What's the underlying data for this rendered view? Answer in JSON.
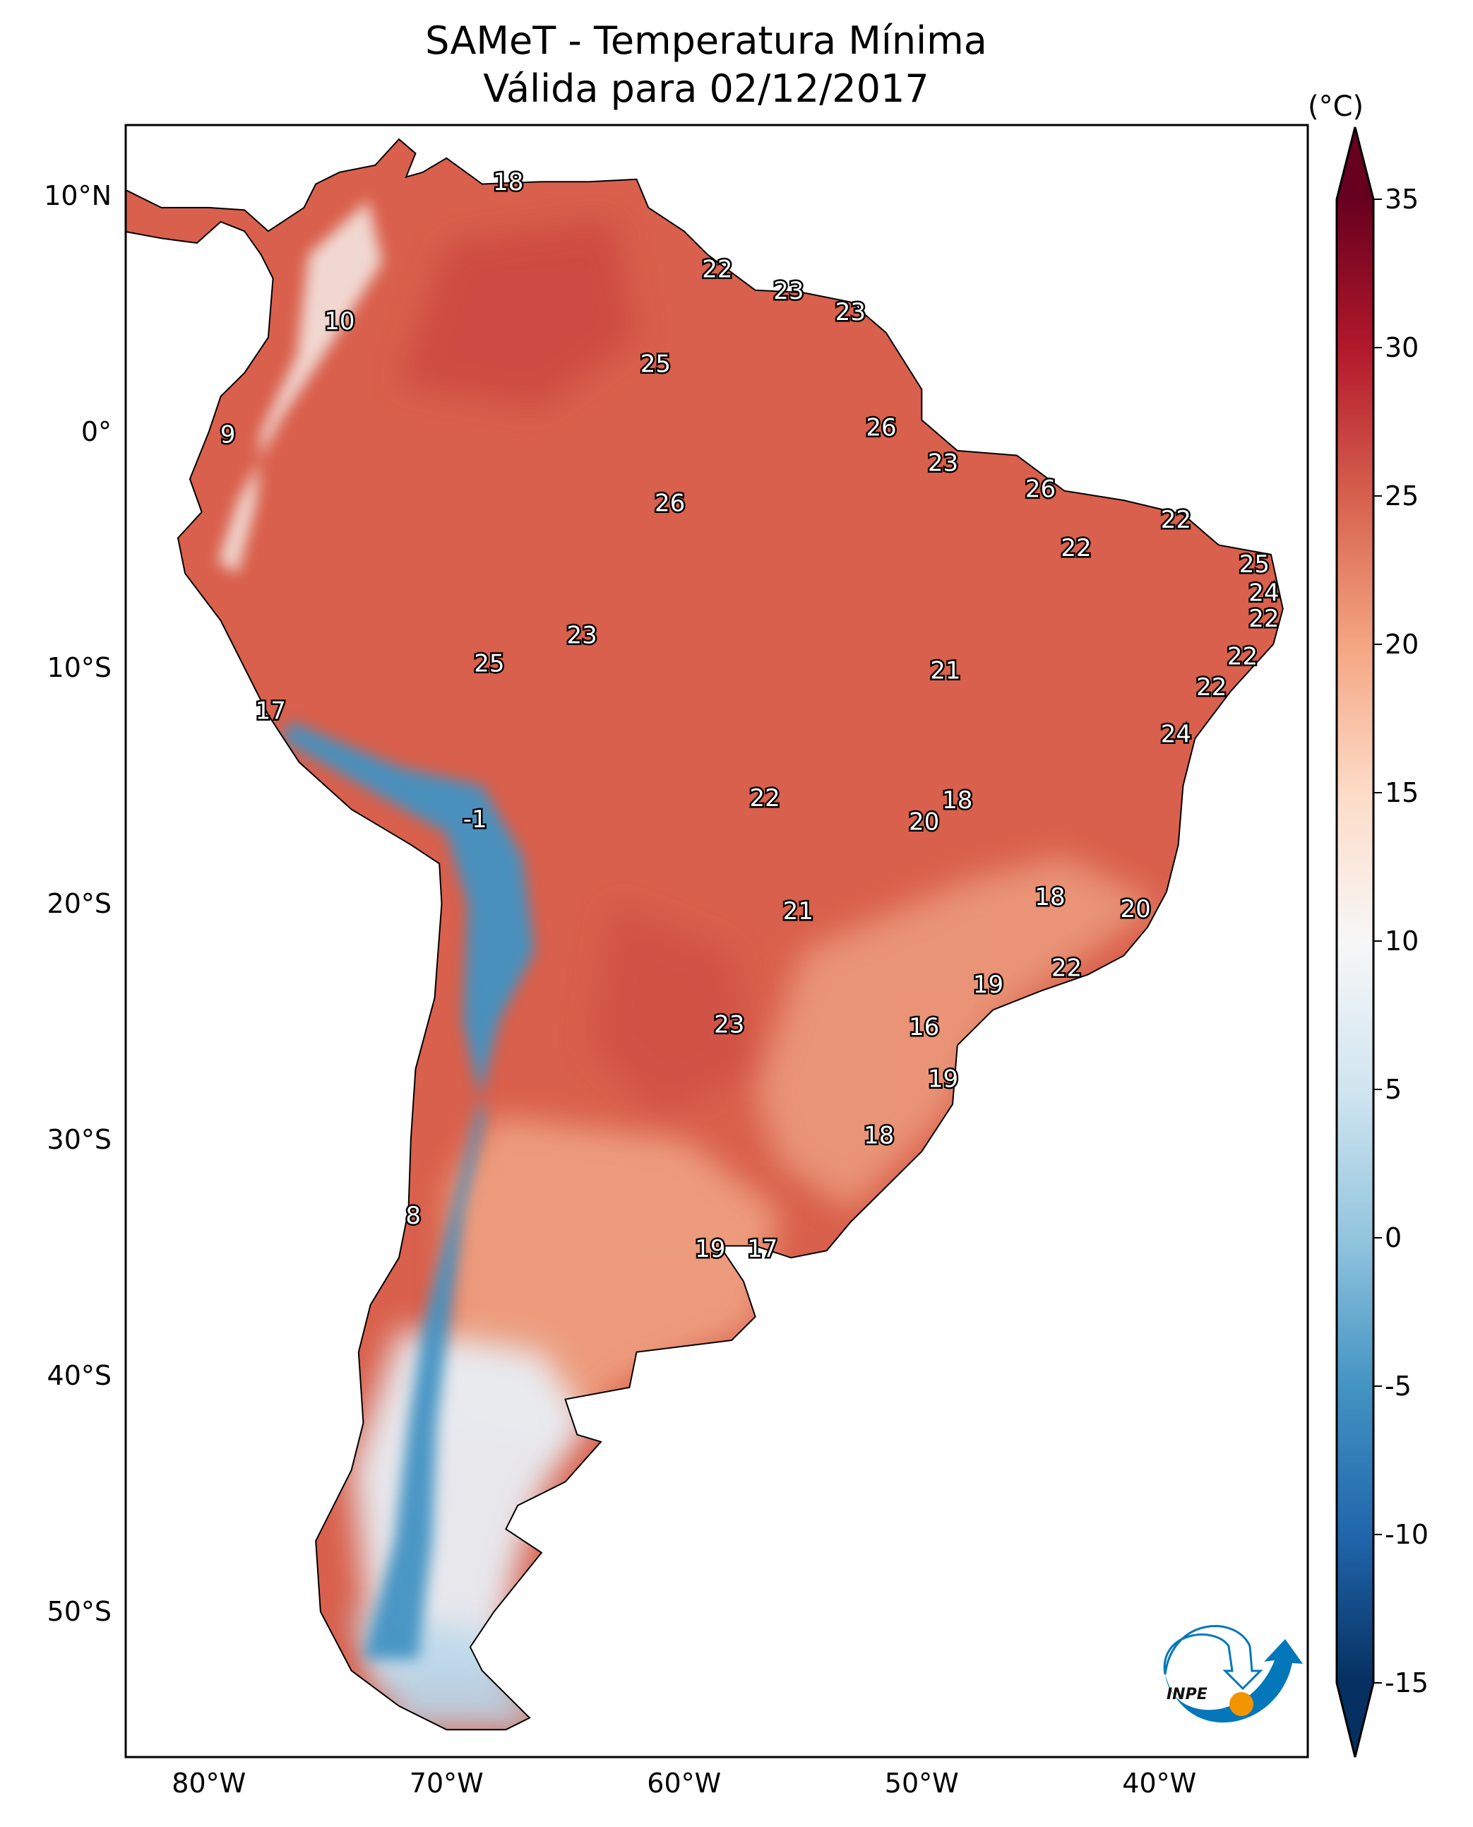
{
  "title": {
    "line1": "SAMeT - Temperatura Mínima",
    "line2": "Válida para 02/12/2017"
  },
  "colorbar": {
    "unit": "(°C)",
    "min": -15,
    "max": 35,
    "ticks": [
      "35",
      "30",
      "25",
      "20",
      "15",
      "10",
      "5",
      "0",
      "-5",
      "-10",
      "-15"
    ],
    "tick_values": [
      35,
      30,
      25,
      20,
      15,
      10,
      5,
      0,
      -5,
      -10,
      -15
    ],
    "extend": "both",
    "colors": [
      "#053061",
      "#2166ac",
      "#4393c3",
      "#92c5de",
      "#d1e5f0",
      "#f7f7f7",
      "#fddbc7",
      "#f4a582",
      "#d6604d",
      "#b2182b",
      "#67001f"
    ]
  },
  "axes": {
    "lat_ticks": [
      {
        "label": "10°N",
        "v": 10
      },
      {
        "label": "0°",
        "v": 0
      },
      {
        "label": "10°S",
        "v": -10
      },
      {
        "label": "20°S",
        "v": -20
      },
      {
        "label": "30°S",
        "v": -30
      },
      {
        "label": "40°S",
        "v": -40
      },
      {
        "label": "50°S",
        "v": -50
      }
    ],
    "lon_ticks": [
      {
        "label": "80°W",
        "v": -80
      },
      {
        "label": "70°W",
        "v": -70
      },
      {
        "label": "60°W",
        "v": -60
      },
      {
        "label": "50°W",
        "v": -50
      },
      {
        "label": "40°W",
        "v": -40
      }
    ],
    "lon_range": [
      -83.5,
      -33.75
    ],
    "lat_range": [
      -56.2,
      13
    ]
  },
  "station_labels": [
    {
      "t": "18",
      "lon": -67.4,
      "lat": 10.6
    },
    {
      "t": "22",
      "lon": -58.6,
      "lat": 6.9
    },
    {
      "t": "23",
      "lon": -55.6,
      "lat": 6.0
    },
    {
      "t": "23",
      "lon": -53.0,
      "lat": 5.1
    },
    {
      "t": "10",
      "lon": -74.5,
      "lat": 4.7
    },
    {
      "t": "25",
      "lon": -61.2,
      "lat": 2.9
    },
    {
      "t": "9",
      "lon": -79.2,
      "lat": -0.1
    },
    {
      "t": "26",
      "lon": -51.7,
      "lat": 0.2
    },
    {
      "t": "23",
      "lon": -49.1,
      "lat": -1.3
    },
    {
      "t": "26",
      "lon": -60.6,
      "lat": -3.0
    },
    {
      "t": "26",
      "lon": -45.0,
      "lat": -2.4
    },
    {
      "t": "22",
      "lon": -39.3,
      "lat": -3.7
    },
    {
      "t": "22",
      "lon": -43.5,
      "lat": -4.9
    },
    {
      "t": "25",
      "lon": -36.0,
      "lat": -5.6
    },
    {
      "t": "24",
      "lon": -35.6,
      "lat": -6.8
    },
    {
      "t": "22",
      "lon": -35.6,
      "lat": -7.9
    },
    {
      "t": "23",
      "lon": -64.3,
      "lat": -8.6
    },
    {
      "t": "25",
      "lon": -68.2,
      "lat": -9.8
    },
    {
      "t": "22",
      "lon": -36.5,
      "lat": -9.5
    },
    {
      "t": "21",
      "lon": -49.0,
      "lat": -10.1
    },
    {
      "t": "22",
      "lon": -37.8,
      "lat": -10.8
    },
    {
      "t": "17",
      "lon": -77.4,
      "lat": -11.8
    },
    {
      "t": "24",
      "lon": -39.3,
      "lat": -12.8
    },
    {
      "t": "22",
      "lon": -56.6,
      "lat": -15.5
    },
    {
      "t": "18",
      "lon": -48.5,
      "lat": -15.6
    },
    {
      "t": "-1",
      "lon": -68.8,
      "lat": -16.4
    },
    {
      "t": "20",
      "lon": -49.9,
      "lat": -16.5
    },
    {
      "t": "18",
      "lon": -44.6,
      "lat": -19.7
    },
    {
      "t": "20",
      "lon": -41.0,
      "lat": -20.2
    },
    {
      "t": "21",
      "lon": -55.2,
      "lat": -20.3
    },
    {
      "t": "22",
      "lon": -43.9,
      "lat": -22.7
    },
    {
      "t": "19",
      "lon": -47.2,
      "lat": -23.4
    },
    {
      "t": "23",
      "lon": -58.1,
      "lat": -25.1
    },
    {
      "t": "16",
      "lon": -49.9,
      "lat": -25.2
    },
    {
      "t": "19",
      "lon": -49.1,
      "lat": -27.4
    },
    {
      "t": "18",
      "lon": -51.8,
      "lat": -29.8
    },
    {
      "t": "8",
      "lon": -71.4,
      "lat": -33.2
    },
    {
      "t": "19",
      "lon": -58.9,
      "lat": -34.6
    },
    {
      "t": "17",
      "lon": -56.7,
      "lat": -34.6
    }
  ],
  "logo": {
    "text": "INPE",
    "blue": "#0477bb",
    "orange": "#f29400"
  }
}
